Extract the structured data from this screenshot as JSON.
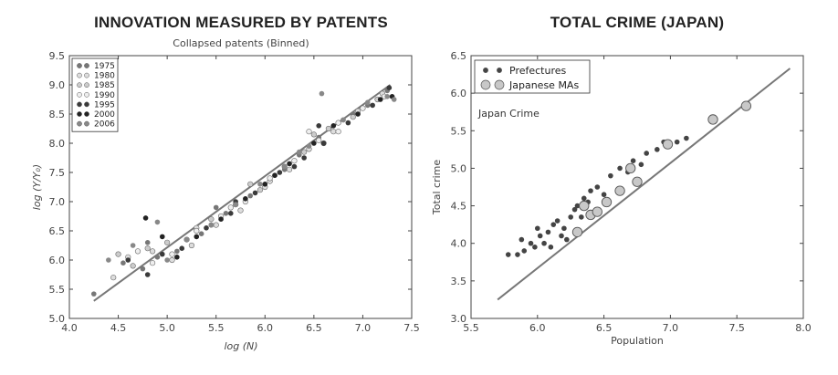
{
  "chart_data": [
    {
      "type": "scatter",
      "title": "INNOVATION MEASURED BY PATENTS",
      "subtitle": "Collapsed patents (Binned)",
      "xlabel": "log (N)",
      "ylabel": "log (Y/Y₀)",
      "xlim": [
        4.0,
        7.5
      ],
      "ylim": [
        5.0,
        9.5
      ],
      "xticks": [
        "4.0",
        "4.5",
        "5.0",
        "5.5",
        "6.0",
        "6.5",
        "7.0",
        "7.5"
      ],
      "yticks": [
        "5.0",
        "5.5",
        "6.0",
        "6.5",
        "7.0",
        "7.5",
        "8.0",
        "8.5",
        "9.0",
        "9.5"
      ],
      "legend_position": "top-left",
      "series": [
        {
          "name": "1975",
          "color": "#777777",
          "points": [
            [
              4.25,
              5.42
            ],
            [
              4.55,
              5.95
            ],
            [
              4.75,
              5.85
            ],
            [
              4.9,
              6.05
            ],
            [
              5.1,
              6.15
            ],
            [
              5.35,
              6.45
            ],
            [
              5.6,
              6.8
            ],
            [
              5.85,
              7.1
            ],
            [
              6.1,
              7.45
            ],
            [
              6.35,
              7.8
            ],
            [
              6.55,
              8.1
            ],
            [
              6.8,
              8.4
            ],
            [
              7.05,
              8.65
            ],
            [
              7.25,
              8.9
            ],
            [
              4.8,
              6.3
            ],
            [
              5.5,
              6.9
            ],
            [
              6.2,
              7.55
            ],
            [
              6.9,
              8.5
            ]
          ]
        },
        {
          "name": "1980",
          "color": "#dddddd",
          "points": [
            [
              4.45,
              5.7
            ],
            [
              4.6,
              6.05
            ],
            [
              4.85,
              6.15
            ],
            [
              5.05,
              6.0
            ],
            [
              5.25,
              6.25
            ],
            [
              5.5,
              6.6
            ],
            [
              5.75,
              6.85
            ],
            [
              6.0,
              7.25
            ],
            [
              6.25,
              7.55
            ],
            [
              6.45,
              7.9
            ],
            [
              6.7,
              8.2
            ],
            [
              6.95,
              8.55
            ],
            [
              7.2,
              8.85
            ],
            [
              5.3,
              6.55
            ],
            [
              6.05,
              7.35
            ],
            [
              6.6,
              8.0
            ]
          ]
        },
        {
          "name": "1985",
          "color": "#cccccc",
          "points": [
            [
              4.5,
              6.1
            ],
            [
              4.65,
              5.9
            ],
            [
              4.8,
              6.2
            ],
            [
              5.0,
              6.3
            ],
            [
              5.2,
              6.35
            ],
            [
              5.45,
              6.7
            ],
            [
              5.7,
              6.95
            ],
            [
              5.95,
              7.2
            ],
            [
              6.2,
              7.6
            ],
            [
              6.4,
              7.85
            ],
            [
              6.65,
              8.25
            ],
            [
              6.9,
              8.45
            ],
            [
              7.15,
              8.75
            ],
            [
              5.85,
              7.3
            ],
            [
              6.5,
              8.15
            ]
          ]
        },
        {
          "name": "1990",
          "color": "#eeeeee",
          "points": [
            [
              4.7,
              6.15
            ],
            [
              4.85,
              5.95
            ],
            [
              5.05,
              6.1
            ],
            [
              5.3,
              6.5
            ],
            [
              5.55,
              6.75
            ],
            [
              5.8,
              7.0
            ],
            [
              6.05,
              7.4
            ],
            [
              6.3,
              7.7
            ],
            [
              6.55,
              8.05
            ],
            [
              6.75,
              8.35
            ],
            [
              7.0,
              8.6
            ],
            [
              7.22,
              8.8
            ],
            [
              5.65,
              6.9
            ],
            [
              6.45,
              8.2
            ],
            [
              6.75,
              8.2
            ]
          ]
        },
        {
          "name": "1995",
          "color": "#3a3a3a",
          "points": [
            [
              4.6,
              6.0
            ],
            [
              4.8,
              5.75
            ],
            [
              4.95,
              6.1
            ],
            [
              5.15,
              6.2
            ],
            [
              5.4,
              6.55
            ],
            [
              5.65,
              6.8
            ],
            [
              5.9,
              7.15
            ],
            [
              6.15,
              7.5
            ],
            [
              6.4,
              7.75
            ],
            [
              6.6,
              8.0
            ],
            [
              6.85,
              8.35
            ],
            [
              7.1,
              8.65
            ],
            [
              7.27,
              8.95
            ],
            [
              5.7,
              7.0
            ],
            [
              6.3,
              7.6
            ],
            [
              6.55,
              8.3
            ]
          ]
        },
        {
          "name": "2000",
          "color": "#222222",
          "points": [
            [
              4.78,
              6.72
            ],
            [
              4.95,
              6.4
            ],
            [
              5.1,
              6.05
            ],
            [
              5.3,
              6.4
            ],
            [
              5.55,
              6.7
            ],
            [
              5.8,
              7.05
            ],
            [
              6.0,
              7.3
            ],
            [
              6.25,
              7.65
            ],
            [
              6.5,
              8.0
            ],
            [
              6.7,
              8.3
            ],
            [
              6.95,
              8.5
            ],
            [
              7.18,
              8.75
            ],
            [
              7.3,
              8.8
            ],
            [
              5.45,
              6.6
            ],
            [
              6.1,
              7.45
            ]
          ]
        },
        {
          "name": "2006",
          "color": "#888888",
          "points": [
            [
              4.4,
              6.0
            ],
            [
              4.65,
              6.25
            ],
            [
              4.9,
              6.65
            ],
            [
              5.0,
              6.0
            ],
            [
              5.2,
              6.35
            ],
            [
              5.45,
              6.6
            ],
            [
              5.7,
              6.95
            ],
            [
              5.95,
              7.3
            ],
            [
              6.2,
              7.6
            ],
            [
              6.45,
              7.95
            ],
            [
              6.58,
              8.85
            ],
            [
              6.8,
              8.4
            ],
            [
              7.05,
              8.7
            ],
            [
              7.25,
              8.8
            ],
            [
              7.32,
              8.75
            ],
            [
              6.35,
              7.85
            ]
          ]
        }
      ],
      "fit_line": [
        [
          4.25,
          5.3
        ],
        [
          7.28,
          9.0
        ]
      ]
    },
    {
      "type": "scatter",
      "title": "TOTAL CRIME (JAPAN)",
      "annotation": "Japan Crime",
      "xlabel": "Population",
      "ylabel": "Total crime",
      "xlim": [
        5.5,
        8.0
      ],
      "ylim": [
        3.0,
        6.5
      ],
      "xticks": [
        "5.5",
        "6.0",
        "6.5",
        "7.0",
        "7.5",
        "8.0"
      ],
      "yticks": [
        "3.0",
        "3.5",
        "4.0",
        "4.5",
        "5.0",
        "5.5",
        "6.0",
        "6.5"
      ],
      "legend_position": "top-left",
      "series": [
        {
          "name": "Prefectures",
          "color": "#444444",
          "points": [
            [
              5.78,
              3.85
            ],
            [
              5.85,
              3.85
            ],
            [
              5.88,
              4.05
            ],
            [
              5.9,
              3.9
            ],
            [
              5.95,
              4.0
            ],
            [
              5.98,
              3.95
            ],
            [
              6.0,
              4.2
            ],
            [
              6.02,
              4.1
            ],
            [
              6.05,
              4.0
            ],
            [
              6.08,
              4.15
            ],
            [
              6.1,
              3.95
            ],
            [
              6.12,
              4.25
            ],
            [
              6.15,
              4.3
            ],
            [
              6.18,
              4.1
            ],
            [
              6.2,
              4.2
            ],
            [
              6.22,
              4.05
            ],
            [
              6.25,
              4.35
            ],
            [
              6.28,
              4.45
            ],
            [
              6.3,
              4.5
            ],
            [
              6.33,
              4.35
            ],
            [
              6.35,
              4.6
            ],
            [
              6.38,
              4.55
            ],
            [
              6.4,
              4.7
            ],
            [
              6.45,
              4.75
            ],
            [
              6.5,
              4.65
            ],
            [
              6.55,
              4.9
            ],
            [
              6.62,
              5.0
            ],
            [
              6.68,
              4.95
            ],
            [
              6.72,
              5.1
            ],
            [
              6.78,
              5.05
            ],
            [
              6.82,
              5.2
            ],
            [
              6.9,
              5.25
            ],
            [
              6.95,
              5.35
            ],
            [
              7.05,
              5.35
            ],
            [
              7.12,
              5.4
            ]
          ]
        },
        {
          "name": "Japanese MAs",
          "color": "#c8c8c8",
          "points": [
            [
              6.3,
              4.15
            ],
            [
              6.35,
              4.5
            ],
            [
              6.4,
              4.38
            ],
            [
              6.45,
              4.42
            ],
            [
              6.52,
              4.55
            ],
            [
              6.62,
              4.7
            ],
            [
              6.7,
              5.0
            ],
            [
              6.75,
              4.82
            ],
            [
              6.98,
              5.32
            ],
            [
              7.32,
              5.65
            ],
            [
              7.57,
              5.83
            ]
          ]
        }
      ],
      "fit_line": [
        [
          5.7,
          3.25
        ],
        [
          7.9,
          6.33
        ]
      ]
    }
  ]
}
